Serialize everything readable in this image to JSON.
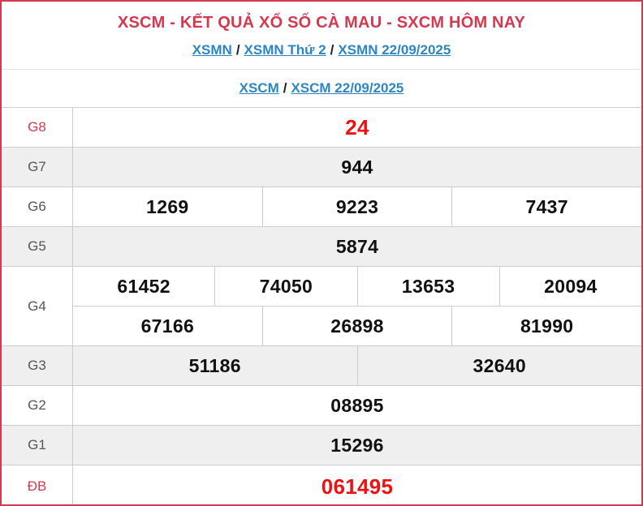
{
  "title": "XSCM - KẾT QUẢ XỔ SỐ CÀ MAU - SXCM HÔM NAY",
  "breadcrumbs": {
    "row1": {
      "link1": "XSMN",
      "sep1": "/",
      "link2": "XSMN Thứ 2",
      "sep2": "/",
      "link3": "XSMN 22/09/2025"
    },
    "row2": {
      "link1": "XSCM",
      "sep1": "/",
      "link2": "XSCM 22/09/2025"
    }
  },
  "table": {
    "rows": [
      {
        "label": "G8",
        "values": [
          "24"
        ]
      },
      {
        "label": "G7",
        "values": [
          "944"
        ]
      },
      {
        "label": "G6",
        "values": [
          "1269",
          "9223",
          "7437"
        ]
      },
      {
        "label": "G5",
        "values": [
          "5874"
        ]
      },
      {
        "label": "G4",
        "values_top": [
          "61452",
          "74050",
          "13653",
          "20094"
        ],
        "values_bottom": [
          "67166",
          "26898",
          "81990"
        ]
      },
      {
        "label": "G3",
        "values": [
          "51186",
          "32640"
        ]
      },
      {
        "label": "G2",
        "values": [
          "08895"
        ]
      },
      {
        "label": "G1",
        "values": [
          "15296"
        ]
      },
      {
        "label": "ĐB",
        "values": [
          "061495"
        ]
      }
    ]
  },
  "colors": {
    "accent_red": "#d4394f",
    "number_red": "#ee1111",
    "number_black": "#111111",
    "link_blue": "#2e86c1",
    "row_gray": "#efefef",
    "cell_border": "#cccccc"
  }
}
